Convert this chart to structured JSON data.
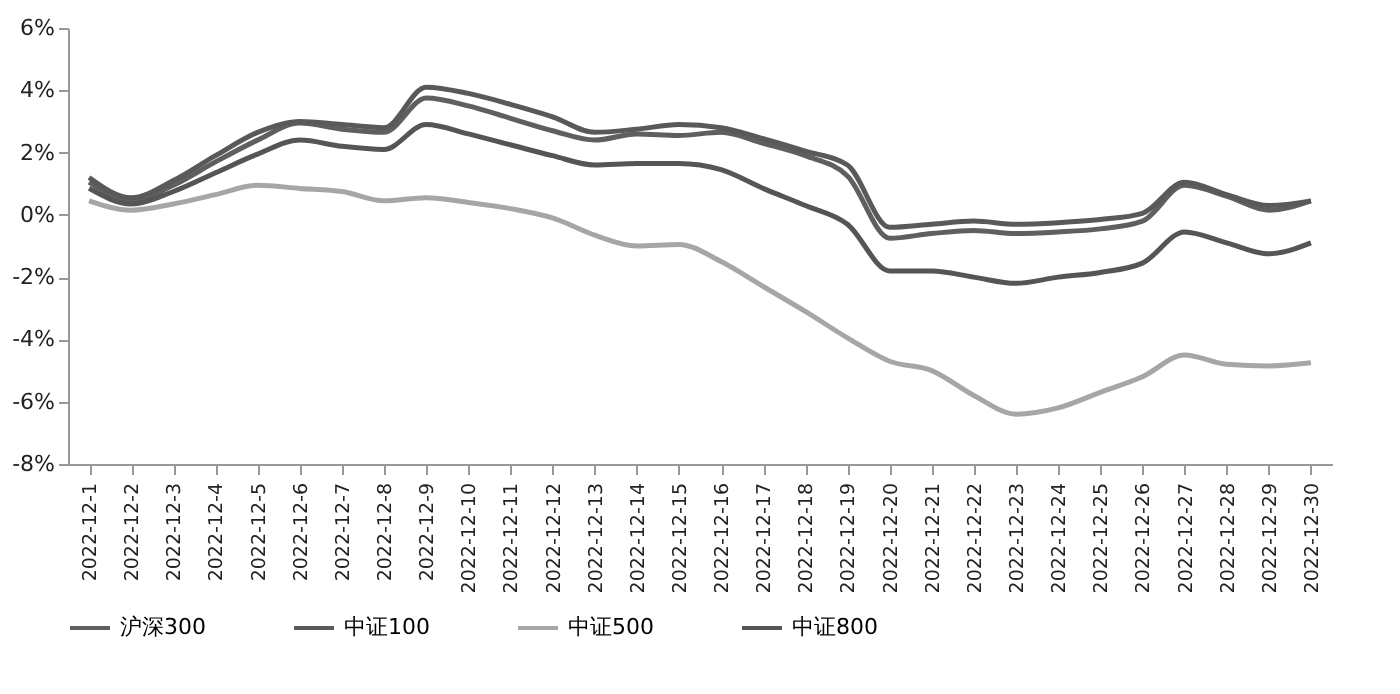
{
  "chart_data": {
    "type": "line",
    "categories": [
      "2022-12-1",
      "2022-12-2",
      "2022-12-3",
      "2022-12-4",
      "2022-12-5",
      "2022-12-6",
      "2022-12-7",
      "2022-12-8",
      "2022-12-9",
      "2022-12-10",
      "2022-12-11",
      "2022-12-12",
      "2022-12-13",
      "2022-12-14",
      "2022-12-15",
      "2022-12-16",
      "2022-12-17",
      "2022-12-18",
      "2022-12-19",
      "2022-12-20",
      "2022-12-21",
      "2022-12-22",
      "2022-12-23",
      "2022-12-24",
      "2022-12-25",
      "2022-12-26",
      "2022-12-27",
      "2022-12-28",
      "2022-12-29",
      "2022-12-30"
    ],
    "series": [
      {
        "name": "沪深300",
        "color": "#5f5f5f",
        "values": [
          1.05,
          0.45,
          0.95,
          1.7,
          2.4,
          2.95,
          2.75,
          2.65,
          3.75,
          3.5,
          3.1,
          2.7,
          2.4,
          2.6,
          2.55,
          2.65,
          2.3,
          1.9,
          1.25,
          -0.75,
          -0.6,
          -0.5,
          -0.6,
          -0.55,
          -0.45,
          -0.2,
          0.95,
          0.6,
          0.15,
          0.45
        ]
      },
      {
        "name": "中证100",
        "color": "#595959",
        "values": [
          1.2,
          0.55,
          1.1,
          1.9,
          2.65,
          3.0,
          2.9,
          2.8,
          4.1,
          3.9,
          3.55,
          3.15,
          2.65,
          2.75,
          2.9,
          2.8,
          2.45,
          2.05,
          1.6,
          -0.4,
          -0.3,
          -0.2,
          -0.3,
          -0.25,
          -0.15,
          0.05,
          1.05,
          0.65,
          0.3,
          0.45
        ]
      },
      {
        "name": "中证500",
        "color": "#a6a6a6",
        "values": [
          0.45,
          0.15,
          0.35,
          0.65,
          0.95,
          0.85,
          0.75,
          0.45,
          0.55,
          0.4,
          0.2,
          -0.1,
          -0.65,
          -1.0,
          -0.95,
          -1.5,
          -2.3,
          -3.1,
          -3.95,
          -4.7,
          -5.0,
          -5.8,
          -6.4,
          -6.2,
          -5.7,
          -5.2,
          -4.5,
          -4.8,
          -4.85,
          -4.75
        ]
      },
      {
        "name": "中证800",
        "color": "#555555",
        "values": [
          0.85,
          0.35,
          0.75,
          1.35,
          1.95,
          2.4,
          2.2,
          2.1,
          2.9,
          2.6,
          2.25,
          1.9,
          1.6,
          1.65,
          1.65,
          1.45,
          0.85,
          0.3,
          -0.3,
          -1.8,
          -1.8,
          -2.0,
          -2.2,
          -2.0,
          -1.85,
          -1.55,
          -0.55,
          -0.9,
          -1.25,
          -0.9
        ]
      }
    ],
    "ylim": [
      -8,
      6
    ],
    "yticks": [
      {
        "value": -8,
        "label": "-8%"
      },
      {
        "value": -6,
        "label": "-6%"
      },
      {
        "value": -4,
        "label": "-4%"
      },
      {
        "value": -2,
        "label": "-2%"
      },
      {
        "value": 0,
        "label": "0%"
      },
      {
        "value": 2,
        "label": "2%"
      },
      {
        "value": 4,
        "label": "4%"
      },
      {
        "value": 6,
        "label": "6%"
      }
    ],
    "grid": false,
    "legend": "bottom",
    "line_style": "solid",
    "marker": "none"
  }
}
